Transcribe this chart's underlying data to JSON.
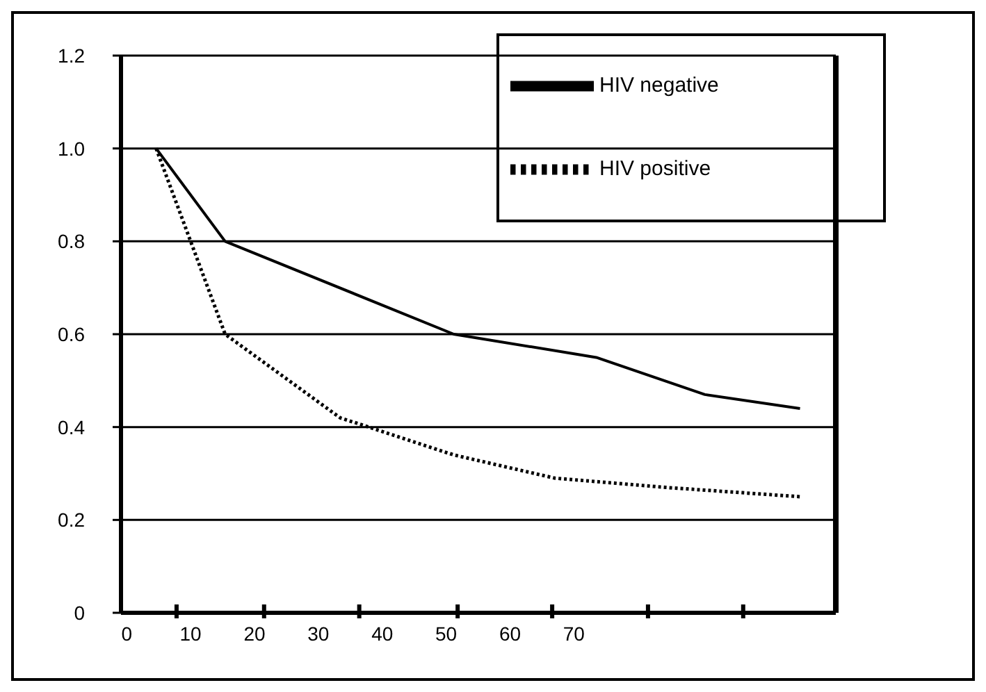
{
  "chart_data": {
    "type": "line",
    "series": [
      {
        "name": "HIV negative",
        "color": "#000000",
        "line_style": "solid",
        "x": [
          4.6,
          15.4,
          51.2,
          73.5,
          90.5,
          105.4
        ],
        "values": [
          1.0,
          0.8,
          0.6,
          0.55,
          0.47,
          0.44
        ]
      },
      {
        "name": "HIV positive",
        "color": "#000000",
        "line_style": "dotted",
        "x": [
          4.6,
          15.4,
          33.4,
          51.2,
          67,
          84.4,
          105.4
        ],
        "values": [
          1.0,
          0.6,
          0.42,
          0.34,
          0.29,
          0.27,
          0.25
        ]
      }
    ],
    "xlim": [
      -0.9,
      111
    ],
    "xticks": [
      0,
      {
        "value": 7.8,
        "label": null
      },
      10,
      20,
      {
        "value": 21.5,
        "label": null
      },
      30,
      {
        "value": 36.4,
        "label": null
      },
      40,
      50,
      {
        "value": 51.8,
        "label": null
      },
      60,
      {
        "value": 66.6,
        "label": null
      },
      70,
      {
        "value": 81.6,
        "label": null
      },
      {
        "value": 96.5,
        "label": null
      }
    ],
    "ylim": [
      0,
      1.2
    ],
    "yticks": [
      0,
      0.2,
      0.4,
      0.6,
      0.8,
      {
        "value": 1,
        "label": "1.0"
      },
      1.2
    ],
    "grid": "y",
    "legend": "top right",
    "marker": "none"
  }
}
